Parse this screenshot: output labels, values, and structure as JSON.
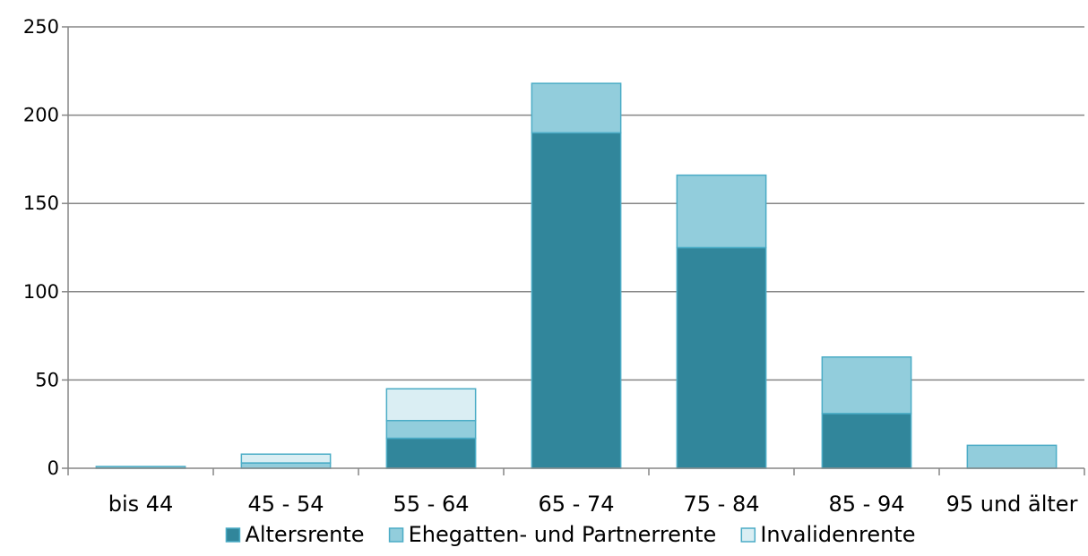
{
  "chart_data": {
    "type": "bar",
    "stacked": true,
    "categories": [
      "bis 44",
      "45 - 54",
      "55 - 64",
      "65 - 74",
      "75 - 84",
      "85 - 94",
      "95 und älter"
    ],
    "series": [
      {
        "name": "Altersrente",
        "values": [
          0,
          0,
          17,
          190,
          125,
          31,
          0
        ],
        "color": "#31869B"
      },
      {
        "name": "Ehegatten- und Partnerrente",
        "values": [
          1,
          3,
          10,
          28,
          41,
          32,
          13
        ],
        "color": "#92CDDC"
      },
      {
        "name": "Invalidenrente",
        "values": [
          0,
          5,
          18,
          0,
          0,
          0,
          0
        ],
        "color": "#DAEEF3"
      }
    ],
    "title": "",
    "xlabel": "",
    "ylabel": "",
    "ylim": [
      0,
      250
    ],
    "yticks": [
      0,
      50,
      100,
      150,
      200,
      250
    ],
    "grid": true,
    "legend_position": "bottom",
    "bar_edge_color": "#4BACC6",
    "axis_color": "#868686"
  }
}
